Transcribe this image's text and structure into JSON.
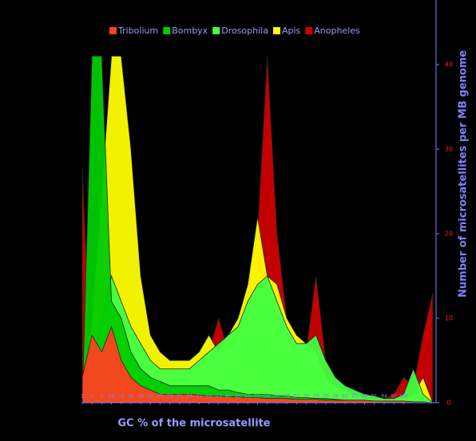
{
  "chart_data": {
    "type": "area",
    "x_label": "GC % of the microsatellite",
    "y_label": "Number of microsatellites per MB genome",
    "x": [
      1,
      4,
      7,
      10,
      13,
      16,
      19,
      22,
      25,
      28,
      31,
      34,
      37,
      40,
      43,
      46,
      49,
      52,
      55,
      58,
      61,
      64,
      67,
      70,
      73,
      76,
      79,
      82,
      85,
      88,
      91,
      94,
      97,
      100,
      103,
      106,
      109
    ],
    "xlim": [
      1,
      110
    ],
    "xticks": [
      1,
      4,
      7,
      10,
      13,
      16,
      19,
      22,
      25,
      28,
      31,
      34,
      37,
      40,
      43,
      46,
      49,
      52,
      55,
      58,
      61,
      64,
      67,
      70,
      73,
      76,
      79,
      82,
      85,
      88,
      91,
      94,
      97,
      100
    ],
    "ylim": [
      0,
      45
    ],
    "yticks": [
      0,
      10,
      20,
      30,
      40
    ],
    "series": [
      {
        "name": "Anopheles",
        "color": "#cc0000",
        "values": [
          28,
          1,
          2,
          2,
          2,
          2,
          1.5,
          1,
          1,
          1,
          1,
          2,
          3,
          6,
          10,
          6,
          8,
          12,
          20,
          41,
          20,
          10,
          8,
          6,
          15,
          5,
          3,
          1,
          0.5,
          0.3,
          0.3,
          0.5,
          1,
          3,
          2,
          8,
          13
        ]
      },
      {
        "name": "Apis",
        "color": "#ffff00",
        "values": [
          0,
          10,
          25,
          41,
          41,
          30,
          15,
          8,
          6,
          5,
          5,
          5,
          6,
          8,
          6,
          8,
          10,
          14,
          22,
          15,
          14,
          10,
          8,
          7,
          6,
          3,
          2,
          1.5,
          1,
          0.5,
          0.3,
          0.3,
          0.3,
          0.5,
          1,
          3,
          0
        ]
      },
      {
        "name": "Drosophila",
        "color": "#40ff40",
        "values": [
          0,
          4,
          10,
          15,
          12,
          9,
          7,
          5,
          4,
          4,
          4,
          4,
          5,
          6,
          7,
          8,
          9,
          12,
          14,
          15,
          12,
          9,
          7,
          7,
          8,
          5,
          3,
          2,
          1.5,
          1,
          0.8,
          0.5,
          0.5,
          1,
          4,
          1,
          0
        ]
      },
      {
        "name": "Bombyx",
        "color": "#00cc00",
        "values": [
          0,
          41,
          41,
          12,
          10,
          6,
          4,
          3,
          2.5,
          2,
          2,
          2,
          2,
          2,
          1.5,
          1.5,
          1.2,
          1,
          1,
          1,
          0.8,
          0.8,
          0.6,
          0.6,
          0.5,
          0.5,
          0.4,
          0.3,
          0.3,
          0.2,
          0.2,
          0.2,
          0.1,
          0.1,
          0.1,
          0,
          0
        ]
      },
      {
        "name": "Tribolium",
        "color": "#ff4020",
        "values": [
          3,
          8,
          6,
          9,
          5,
          3,
          2,
          1.5,
          1,
          1,
          1,
          1,
          0.9,
          0.8,
          0.8,
          0.7,
          0.7,
          0.6,
          0.6,
          0.5,
          0.5,
          0.5,
          0.4,
          0.4,
          0.4,
          0.3,
          0.3,
          0.3,
          0.3,
          0.3,
          0.2,
          0.2,
          0.2,
          0.2,
          0.1,
          0.1,
          0
        ]
      }
    ],
    "legend_order": [
      4,
      3,
      2,
      1,
      0
    ]
  }
}
